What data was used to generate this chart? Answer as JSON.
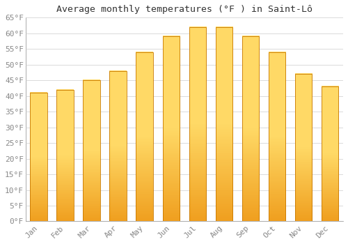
{
  "title": "Average monthly temperatures (°F ) in Saint-Lô",
  "months": [
    "Jan",
    "Feb",
    "Mar",
    "Apr",
    "May",
    "Jun",
    "Jul",
    "Aug",
    "Sep",
    "Oct",
    "Nov",
    "Dec"
  ],
  "values": [
    41,
    42,
    45,
    48,
    54,
    59,
    62,
    62,
    59,
    54,
    47,
    43
  ],
  "bar_color_light": "#FFD966",
  "bar_color_dark": "#F0A020",
  "bar_edge_color": "#C87800",
  "background_color": "#ffffff",
  "grid_color": "#cccccc",
  "ylim": [
    0,
    65
  ],
  "yticks": [
    0,
    5,
    10,
    15,
    20,
    25,
    30,
    35,
    40,
    45,
    50,
    55,
    60,
    65
  ],
  "title_fontsize": 9.5,
  "tick_fontsize": 8,
  "tick_color": "#888888",
  "title_color": "#333333",
  "font_family": "monospace",
  "figsize": [
    5.0,
    3.5
  ],
  "dpi": 100
}
